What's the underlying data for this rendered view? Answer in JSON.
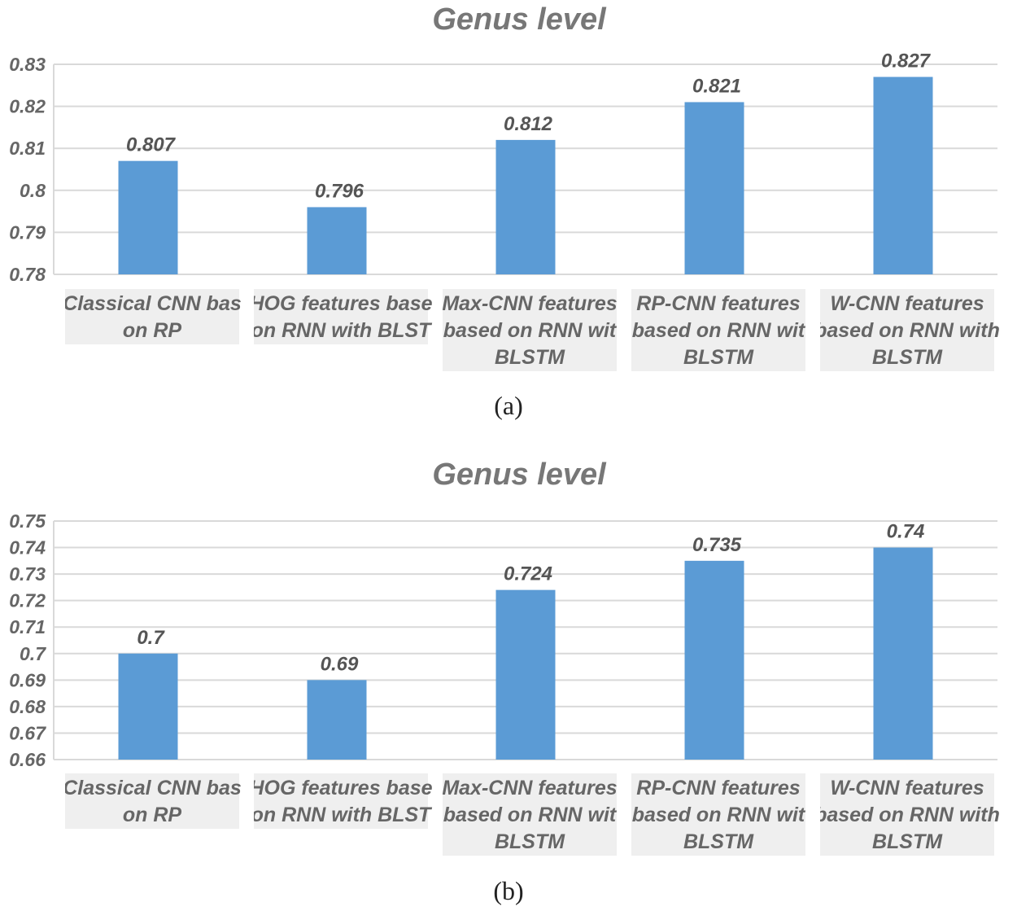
{
  "chart_data": [
    {
      "type": "bar",
      "title": "Genus level",
      "categories": [
        [
          "Classical CNN bas",
          "on RP"
        ],
        [
          "HOG features base",
          "on RNN with BLST"
        ],
        [
          "Max-CNN features",
          "based on RNN wit",
          "BLSTM"
        ],
        [
          "RP-CNN features",
          "based on RNN wit",
          "BLSTM"
        ],
        [
          "W-CNN features",
          "based on RNN with",
          "BLSTM"
        ]
      ],
      "values": [
        0.807,
        0.796,
        0.812,
        0.821,
        0.827
      ],
      "value_labels": [
        "0.807",
        "0.796",
        "0.812",
        "0.821",
        "0.827"
      ],
      "yticks": [
        "0.78",
        "0.79",
        "0.8",
        "0.81",
        "0.82",
        "0.83"
      ],
      "ylim": [
        0.78,
        0.83
      ],
      "xlabel": "",
      "ylabel": "",
      "bar_color": "#5b9bd5",
      "panel_label": "(a)"
    },
    {
      "type": "bar",
      "title": "Genus level",
      "categories": [
        [
          "Classical CNN bas",
          "on RP"
        ],
        [
          "HOG features base",
          "on RNN with BLST"
        ],
        [
          "Max-CNN features",
          "based on RNN wit",
          "BLSTM"
        ],
        [
          "RP-CNN features",
          "based on RNN wit",
          "BLSTM"
        ],
        [
          "W-CNN features",
          "based on RNN with",
          "BLSTM"
        ]
      ],
      "values": [
        0.7,
        0.69,
        0.724,
        0.735,
        0.74
      ],
      "value_labels": [
        "0.7",
        "0.69",
        "0.724",
        "0.735",
        "0.74"
      ],
      "yticks": [
        "0.66",
        "0.67",
        "0.68",
        "0.69",
        "0.7",
        "0.71",
        "0.72",
        "0.73",
        "0.74",
        "0.75"
      ],
      "ylim": [
        0.66,
        0.75
      ],
      "xlabel": "",
      "ylabel": "",
      "bar_color": "#5b9bd5",
      "panel_label": "(b)"
    }
  ]
}
